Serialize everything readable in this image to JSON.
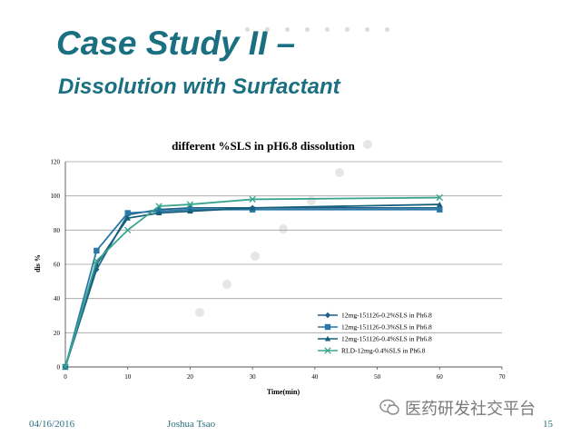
{
  "slide": {
    "title": "Case Study II –",
    "subtitle": "Dissolution with Surfactant",
    "footer_date": "04/16/2016",
    "footer_author": "Joshua Tsao",
    "page_number": "15",
    "watermark": "医药研发社交平台",
    "accent_color": "#1a6f80"
  },
  "chart_data": {
    "type": "line",
    "title": "different %SLS in pH6.8 dissolution",
    "xlabel": "Time(min)",
    "ylabel": "dis %",
    "xlim": [
      0,
      70
    ],
    "ylim": [
      0,
      120
    ],
    "xticks": [
      0,
      10,
      20,
      30,
      40,
      50,
      60,
      70
    ],
    "yticks": [
      0,
      20,
      40,
      60,
      80,
      100,
      120
    ],
    "grid": true,
    "legend_position": "bottom-right",
    "series": [
      {
        "name": "12mg-151126-0.2%SLS in Ph6.8",
        "marker": "diamond",
        "color": "#1f5f8b",
        "x": [
          0,
          5,
          10,
          15,
          20,
          30,
          60
        ],
        "y": [
          0,
          57,
          89,
          92,
          93,
          93,
          93
        ]
      },
      {
        "name": "12mg-151126-0.3%SLS in Ph6.8",
        "marker": "square",
        "color": "#2878a8",
        "x": [
          0,
          5,
          10,
          15,
          20,
          30,
          60
        ],
        "y": [
          0,
          68,
          90,
          91,
          92,
          92,
          92
        ]
      },
      {
        "name": "12mg-151126-0.4%SLS in Ph6.8",
        "marker": "triangle",
        "color": "#17607a",
        "x": [
          0,
          5,
          10,
          15,
          20,
          30,
          60
        ],
        "y": [
          0,
          60,
          87,
          90,
          91,
          93,
          95
        ]
      },
      {
        "name": "RLD-12mg-0.4%SLS in Ph6.8",
        "marker": "x",
        "color": "#3aa58f",
        "x": [
          0,
          5,
          10,
          15,
          20,
          30,
          60
        ],
        "y": [
          0,
          62,
          80,
          94,
          95,
          98,
          99
        ]
      }
    ]
  }
}
